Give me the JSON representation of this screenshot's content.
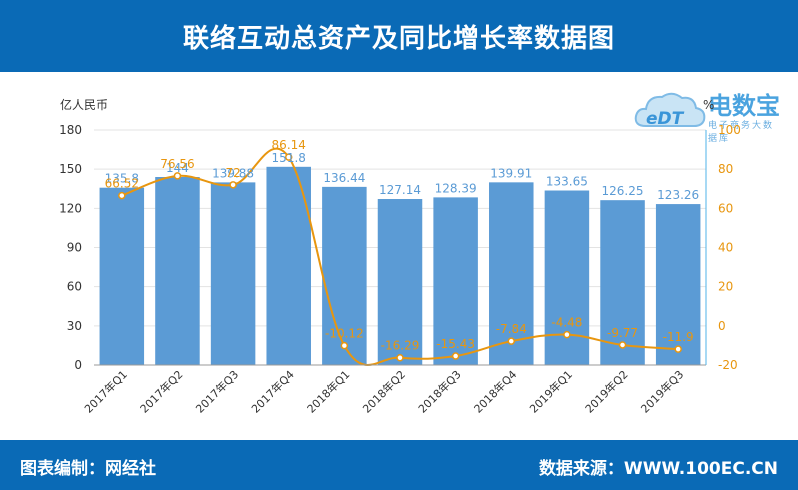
{
  "title": "联络互动总资产及同比增长率数据图",
  "footer": {
    "left": "图表编制：网经社",
    "right": "数据来源：WWW.100EC.CN"
  },
  "logo": {
    "mark": "eDT",
    "name": "电数宝",
    "sub": "电子商务大数据库"
  },
  "colors": {
    "header": "#0a6ab6",
    "bar": "#5b9bd5",
    "line": "#e8960f",
    "bar_label": "#5b9bd5",
    "line_label": "#e8960f"
  },
  "chart_data": {
    "type": "bar",
    "categories": [
      "2017年Q1",
      "2017年Q2",
      "2017年Q3",
      "2017年Q4",
      "2018年Q1",
      "2018年Q2",
      "2018年Q3",
      "2018年Q4",
      "2019年Q1",
      "2019年Q2",
      "2019年Q3"
    ],
    "series": [
      {
        "type": "bar",
        "axis": "left",
        "values": [
          135.8,
          144,
          139.88,
          151.8,
          136.44,
          127.14,
          128.39,
          139.91,
          133.65,
          126.25,
          123.26
        ],
        "labels": [
          "135.8",
          "144",
          "139.88",
          "151.8",
          "136.44",
          "127.14",
          "128.39",
          "139.91",
          "133.65",
          "126.25",
          "123.26"
        ]
      },
      {
        "type": "line",
        "axis": "right",
        "values": [
          66.52,
          76.56,
          72.0,
          86.14,
          -10.12,
          -16.29,
          -15.43,
          -7.84,
          -4.48,
          -9.77,
          -11.9
        ],
        "labels": [
          "66.52",
          "76.56",
          "72",
          "86.14",
          "-10.12",
          "-16.29",
          "-15.43",
          "-7.84",
          "-4.48",
          "-9.77",
          "-11.9"
        ]
      }
    ],
    "ylabel": "亿人民币",
    "ylabel_right": "%",
    "ylim": [
      0,
      180
    ],
    "yticks": [
      "0",
      "30",
      "60",
      "90",
      "120",
      "150",
      "180"
    ],
    "ylim_right": [
      -20,
      100
    ],
    "yticks_right": [
      "-20",
      "0",
      "20",
      "40",
      "60",
      "80",
      "100"
    ],
    "grid": true
  }
}
